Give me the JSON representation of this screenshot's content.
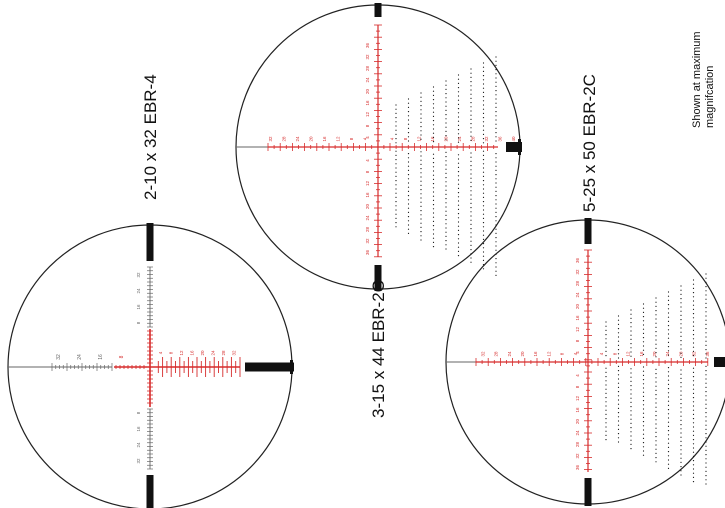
{
  "colors": {
    "background": "#ffffff",
    "outline": "#222222",
    "reticle_red": "#d62b2b",
    "dark": "#111111",
    "gray_line": "#666666"
  },
  "note": {
    "line1": "Shown at maximum",
    "line2": "magnifcation"
  },
  "reticles": [
    {
      "id": "ebr4",
      "title": "2-10 x 32 EBR-4",
      "h_labels_left": [
        "32",
        "24",
        "16",
        "8"
      ],
      "h_labels_right": [
        "4",
        "8",
        "12",
        "16",
        "20",
        "24",
        "28",
        "32"
      ],
      "v_labels_up": [
        "8",
        "16",
        "24",
        "32"
      ],
      "v_labels_down": [
        "8",
        "16",
        "24",
        "32"
      ]
    },
    {
      "id": "ebr2c_44",
      "title": "3-15 x 44 EBR-2C",
      "h_labels_left": [
        "32",
        "28",
        "24",
        "20",
        "16",
        "12",
        "8",
        "4"
      ],
      "h_labels_right": [
        "4",
        "8",
        "12",
        "16",
        "20",
        "24",
        "28",
        "32",
        "36",
        "40"
      ],
      "v_labels_up": [
        "4",
        "8",
        "12",
        "16",
        "20",
        "24",
        "28",
        "32",
        "36"
      ],
      "v_labels_down": [
        "4",
        "8",
        "12",
        "16",
        "20",
        "24",
        "28",
        "32",
        "36"
      ]
    },
    {
      "id": "ebr2c_50",
      "title": "5-25 x 50 EBR-2C",
      "h_labels_left": [
        "32",
        "28",
        "24",
        "20",
        "16",
        "12",
        "8",
        "4"
      ],
      "h_labels_right": [
        "4",
        "8",
        "12",
        "16",
        "20",
        "24",
        "28",
        "32",
        "36"
      ],
      "v_labels_up": [
        "4",
        "8",
        "12",
        "16",
        "20",
        "24",
        "28",
        "32",
        "36"
      ],
      "v_labels_down": [
        "4",
        "8",
        "12",
        "16",
        "20",
        "24",
        "28",
        "32",
        "36"
      ]
    }
  ]
}
